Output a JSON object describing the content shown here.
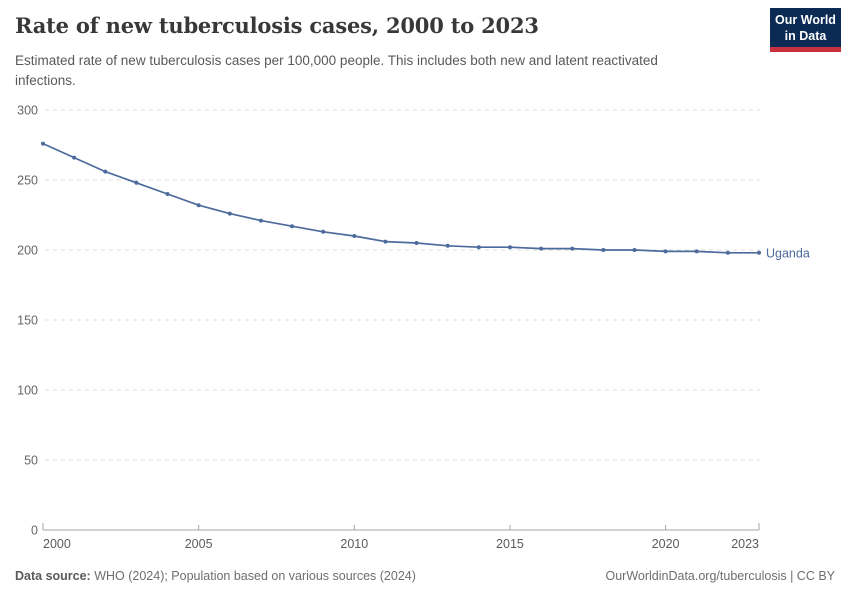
{
  "header": {
    "title": "Rate of new tuberculosis cases, 2000 to 2023",
    "subtitle": "Estimated rate of new tuberculosis cases per 100,000 people. This includes both new and latent reactivated infections.",
    "logo": {
      "line1": "Our World",
      "line2": "in Data"
    }
  },
  "chart_data": {
    "type": "line",
    "title": "Rate of new tuberculosis cases, 2000 to 2023",
    "ylabel": "",
    "xlabel": "",
    "x": [
      2000,
      2001,
      2002,
      2003,
      2004,
      2005,
      2006,
      2007,
      2008,
      2009,
      2010,
      2011,
      2012,
      2013,
      2014,
      2015,
      2016,
      2017,
      2018,
      2019,
      2020,
      2021,
      2022,
      2023
    ],
    "series": [
      {
        "name": "Uganda",
        "color": "#4c6a9c",
        "values": [
          276,
          266,
          256,
          248,
          240,
          232,
          226,
          221,
          217,
          213,
          210,
          206,
          205,
          203,
          202,
          202,
          201,
          201,
          200,
          200,
          199,
          199,
          198,
          198
        ]
      }
    ],
    "xlim": [
      2000,
      2023
    ],
    "ylim": [
      0,
      300
    ],
    "xticks": [
      2000,
      2005,
      2010,
      2015,
      2020,
      2023
    ],
    "yticks": [
      0,
      50,
      100,
      150,
      200,
      250,
      300
    ],
    "grid": "horizontal-dashed",
    "legend_position": "end-of-line-label",
    "markers": true
  },
  "footer": {
    "source_label": "Data source:",
    "source_text": " WHO (2024); Population based on various sources (2024)",
    "link_text": "OurWorldinData.org/tuberculosis | CC BY"
  },
  "colors": {
    "line": "#4c6a9c",
    "grid": "#dcdcdc",
    "axis": "#a5a5a5",
    "y_tick_label": "#666666",
    "x_tick_label": "#5b5b5b",
    "logo_bg": "#0b2a54",
    "logo_red": "#c7303c"
  }
}
